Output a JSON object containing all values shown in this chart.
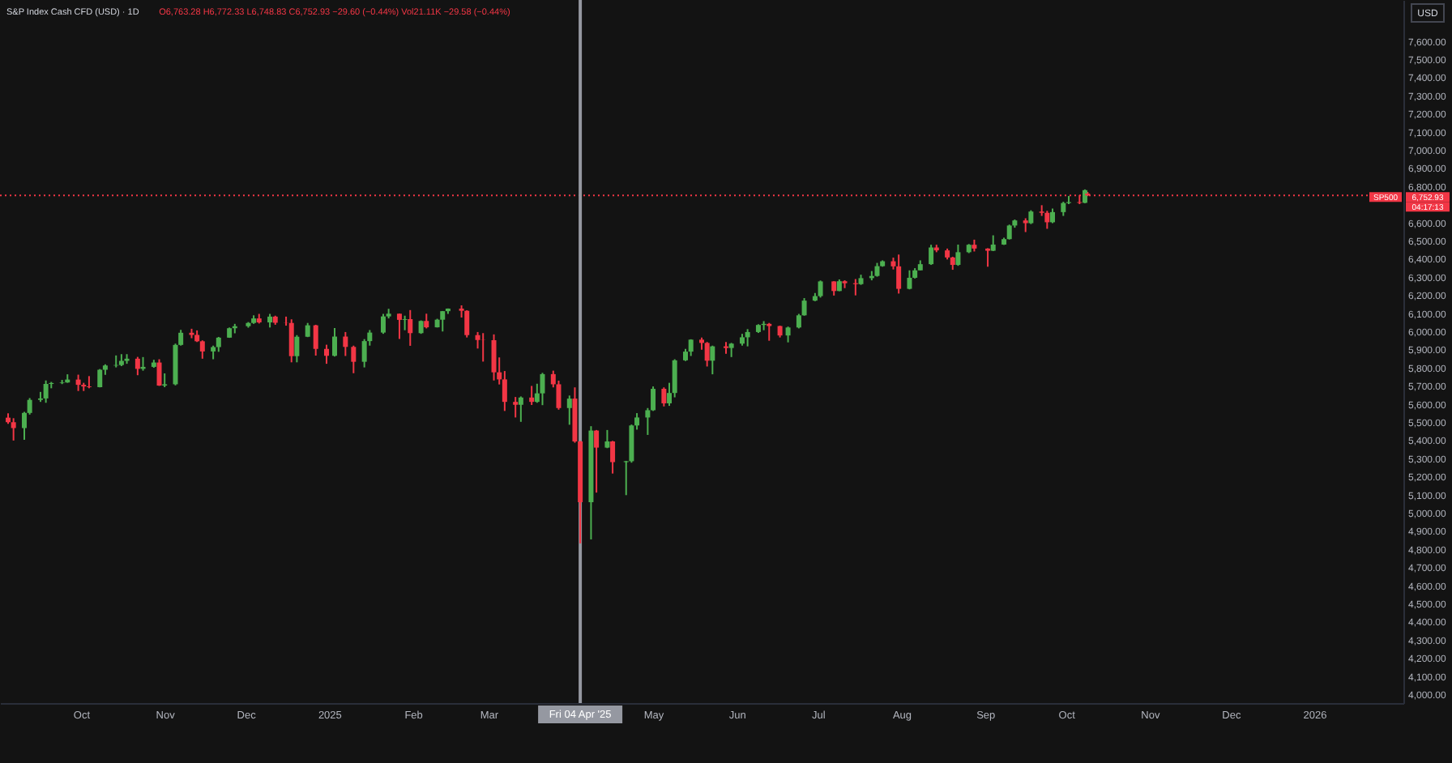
{
  "chart_data": {
    "type": "candlestick",
    "title": "S&P Index Cash CFD (USD) · 1D",
    "subtitle": "O6,763.28 H6,772.33 L6,748.83 C6,752.93 −29.60 (−0.44%) Vol21.11K −29.58 (−0.44%)",
    "ylabel": "USD",
    "xlim": [
      "2024-09-01",
      "2026-02-03"
    ],
    "ylim": [
      3955,
      7830
    ],
    "xticks": [
      {
        "value": "2024-10-01",
        "label": "Oct"
      },
      {
        "value": "2024-11-01",
        "label": "Nov"
      },
      {
        "value": "2024-12-01",
        "label": "Dec"
      },
      {
        "value": "2025-01-01",
        "label": "2025"
      },
      {
        "value": "2025-02-01",
        "label": "Feb"
      },
      {
        "value": "2025-03-01",
        "label": "Mar"
      },
      {
        "value": "2025-05-01",
        "label": "May"
      },
      {
        "value": "2025-06-01",
        "label": "Jun"
      },
      {
        "value": "2025-07-01",
        "label": "Jul"
      },
      {
        "value": "2025-08-01",
        "label": "Aug"
      },
      {
        "value": "2025-09-01",
        "label": "Sep"
      },
      {
        "value": "2025-10-01",
        "label": "Oct"
      },
      {
        "value": "2025-11-01",
        "label": "Nov"
      },
      {
        "value": "2025-12-01",
        "label": "Dec"
      },
      {
        "value": "2026-01-01",
        "label": "2026"
      }
    ],
    "yticks": [
      {
        "value": 4000,
        "label": "4,000.00"
      },
      {
        "value": 4100,
        "label": "4,100.00"
      },
      {
        "value": 4200,
        "label": "4,200.00"
      },
      {
        "value": 4300,
        "label": "4,300.00"
      },
      {
        "value": 4400,
        "label": "4,400.00"
      },
      {
        "value": 4500,
        "label": "4,500.00"
      },
      {
        "value": 4600,
        "label": "4,600.00"
      },
      {
        "value": 4700,
        "label": "4,700.00"
      },
      {
        "value": 4800,
        "label": "4,800.00"
      },
      {
        "value": 4900,
        "label": "4,900.00"
      },
      {
        "value": 5000,
        "label": "5,000.00"
      },
      {
        "value": 5100,
        "label": "5,100.00"
      },
      {
        "value": 5200,
        "label": "5,200.00"
      },
      {
        "value": 5300,
        "label": "5,300.00"
      },
      {
        "value": 5400,
        "label": "5,400.00"
      },
      {
        "value": 5500,
        "label": "5,500.00"
      },
      {
        "value": 5600,
        "label": "5,600.00"
      },
      {
        "value": 5700,
        "label": "5,700.00"
      },
      {
        "value": 5800,
        "label": "5,800.00"
      },
      {
        "value": 5900,
        "label": "5,900.00"
      },
      {
        "value": 6000,
        "label": "6,000.00"
      },
      {
        "value": 6100,
        "label": "6,100.00"
      },
      {
        "value": 6200,
        "label": "6,200.00"
      },
      {
        "value": 6300,
        "label": "6,300.00"
      },
      {
        "value": 6400,
        "label": "6,400.00"
      },
      {
        "value": 6500,
        "label": "6,500.00"
      },
      {
        "value": 6600,
        "label": "6,600.00"
      },
      {
        "value": 6800,
        "label": "6,800.00"
      },
      {
        "value": 6900,
        "label": "6,900.00"
      },
      {
        "value": 7000,
        "label": "7,000.00"
      },
      {
        "value": 7100,
        "label": "7,100.00"
      },
      {
        "value": 7200,
        "label": "7,200.00"
      },
      {
        "value": 7300,
        "label": "7,300.00"
      },
      {
        "value": 7400,
        "label": "7,400.00"
      },
      {
        "value": 7500,
        "label": "7,500.00"
      },
      {
        "value": 7600,
        "label": "7,600.00"
      }
    ],
    "ref_lines": [
      {
        "axis": "y",
        "value": 6752.93,
        "label": "6,752.93",
        "color": "#f23645",
        "line_style": "dotted"
      },
      {
        "axis": "x",
        "value": "2025-04-04",
        "label": "Fri 04 Apr '25",
        "color": "#9598a1"
      }
    ],
    "annotations": [
      {
        "text": "SP500",
        "y": 6752.93
      },
      "04:17:13"
    ],
    "x": [
      "2024-09-04",
      "2024-09-06",
      "2024-09-10",
      "2024-09-12",
      "2024-09-16",
      "2024-09-18",
      "2024-09-20",
      "2024-09-24",
      "2024-09-26",
      "2024-09-30",
      "2024-10-02",
      "2024-10-04",
      "2024-10-08",
      "2024-10-10",
      "2024-10-14",
      "2024-10-16",
      "2024-10-18",
      "2024-10-22",
      "2024-10-24",
      "2024-10-28",
      "2024-10-30",
      "2024-11-01",
      "2024-11-05",
      "2024-11-07",
      "2024-11-11",
      "2024-11-13",
      "2024-11-15",
      "2024-11-19",
      "2024-11-21",
      "2024-11-25",
      "2024-11-27",
      "2024-12-02",
      "2024-12-04",
      "2024-12-06",
      "2024-12-10",
      "2024-12-12",
      "2024-12-16",
      "2024-12-18",
      "2024-12-20",
      "2024-12-24",
      "2024-12-27",
      "2024-12-31",
      "2025-01-03",
      "2025-01-07",
      "2025-01-10",
      "2025-01-14",
      "2025-01-16",
      "2025-01-21",
      "2025-01-23",
      "2025-01-27",
      "2025-01-29",
      "2025-01-31",
      "2025-02-04",
      "2025-02-06",
      "2025-02-10",
      "2025-02-12",
      "2025-02-14",
      "2025-02-19",
      "2025-02-21",
      "2025-02-25",
      "2025-02-27",
      "2025-03-03",
      "2025-03-05",
      "2025-03-07",
      "2025-03-11",
      "2025-03-13",
      "2025-03-17",
      "2025-03-19",
      "2025-03-21",
      "2025-03-25",
      "2025-03-27",
      "2025-03-31",
      "2025-04-02",
      "2025-04-04",
      "2025-04-08",
      "2025-04-10",
      "2025-04-14",
      "2025-04-16",
      "2025-04-21",
      "2025-04-23",
      "2025-04-25",
      "2025-04-29",
      "2025-05-01",
      "2025-05-05",
      "2025-05-07",
      "2025-05-09",
      "2025-05-13",
      "2025-05-15",
      "2025-05-19",
      "2025-05-21",
      "2025-05-23",
      "2025-05-28",
      "2025-05-30",
      "2025-06-03",
      "2025-06-05",
      "2025-06-09",
      "2025-06-11",
      "2025-06-13",
      "2025-06-17",
      "2025-06-20",
      "2025-06-24",
      "2025-06-26",
      "2025-06-30",
      "2025-07-02",
      "2025-07-07",
      "2025-07-09",
      "2025-07-11",
      "2025-07-15",
      "2025-07-17",
      "2025-07-21",
      "2025-07-23",
      "2025-07-25",
      "2025-07-29",
      "2025-07-31",
      "2025-08-04",
      "2025-08-06",
      "2025-08-08",
      "2025-08-12",
      "2025-08-14",
      "2025-08-18",
      "2025-08-20",
      "2025-08-22",
      "2025-08-26",
      "2025-08-28",
      "2025-09-02",
      "2025-09-04",
      "2025-09-08",
      "2025-09-10",
      "2025-09-12",
      "2025-09-16",
      "2025-09-18",
      "2025-09-22",
      "2025-09-24",
      "2025-09-26",
      "2025-09-30",
      "2025-10-02",
      "2025-10-06",
      "2025-10-08",
      "2025-10-09"
    ],
    "ohlc": [
      [
        5528,
        5552,
        5494,
        5503
      ],
      [
        5503,
        5525,
        5402,
        5471
      ],
      [
        5471,
        5560,
        5406,
        5554
      ],
      [
        5554,
        5636,
        5545,
        5626
      ],
      [
        5626,
        5670,
        5615,
        5634
      ],
      [
        5634,
        5733,
        5610,
        5714
      ],
      [
        5714,
        5725,
        5690,
        5719
      ],
      [
        5719,
        5736,
        5713,
        5722
      ],
      [
        5722,
        5767,
        5720,
        5738
      ],
      [
        5738,
        5765,
        5675,
        5709
      ],
      [
        5709,
        5720,
        5675,
        5700
      ],
      [
        5700,
        5757,
        5690,
        5696
      ],
      [
        5696,
        5796,
        5695,
        5792
      ],
      [
        5792,
        5822,
        5764,
        5815
      ],
      [
        5815,
        5871,
        5805,
        5818
      ],
      [
        5818,
        5878,
        5812,
        5841
      ],
      [
        5841,
        5878,
        5825,
        5853
      ],
      [
        5853,
        5863,
        5762,
        5797
      ],
      [
        5797,
        5862,
        5787,
        5808
      ],
      [
        5808,
        5847,
        5803,
        5832
      ],
      [
        5832,
        5850,
        5703,
        5705
      ],
      [
        5705,
        5772,
        5696,
        5712
      ],
      [
        5712,
        5936,
        5706,
        5929
      ],
      [
        5929,
        6012,
        5925,
        5996
      ],
      [
        5996,
        6018,
        5966,
        5984
      ],
      [
        5984,
        6009,
        5945,
        5949
      ],
      [
        5949,
        5954,
        5853,
        5893
      ],
      [
        5893,
        5925,
        5850,
        5917
      ],
      [
        5917,
        5973,
        5891,
        5969
      ],
      [
        5969,
        6025,
        5968,
        6021
      ],
      [
        6021,
        6045,
        5993,
        6032
      ],
      [
        6032,
        6055,
        6024,
        6050
      ],
      [
        6050,
        6092,
        6045,
        6075
      ],
      [
        6075,
        6100,
        6047,
        6053
      ],
      [
        6053,
        6100,
        6025,
        6085
      ],
      [
        6085,
        6090,
        6040,
        6051
      ],
      [
        6051,
        6085,
        6035,
        6050
      ],
      [
        6050,
        6070,
        5833,
        5867
      ],
      [
        5867,
        5983,
        5833,
        5974
      ],
      [
        5974,
        6050,
        5972,
        6037
      ],
      [
        6037,
        6040,
        5870,
        5907
      ],
      [
        5907,
        5930,
        5825,
        5869
      ],
      [
        5869,
        6022,
        5865,
        5975
      ],
      [
        5975,
        6000,
        5868,
        5918
      ],
      [
        5918,
        5925,
        5773,
        5836
      ],
      [
        5836,
        5961,
        5805,
        5950
      ],
      [
        5950,
        6011,
        5925,
        5997
      ],
      [
        5997,
        6100,
        5990,
        6086
      ],
      [
        6086,
        6128,
        6075,
        6101
      ],
      [
        6101,
        6102,
        5962,
        6067
      ],
      [
        6067,
        6090,
        6010,
        6071
      ],
      [
        6071,
        6121,
        5924,
        5994
      ],
      [
        5994,
        6064,
        5990,
        6061
      ],
      [
        6061,
        6101,
        6020,
        6026
      ],
      [
        6026,
        6073,
        6025,
        6068
      ],
      [
        6068,
        6116,
        6003,
        6115
      ],
      [
        6115,
        6130,
        6100,
        6129
      ],
      [
        6129,
        6147,
        6080,
        6117
      ],
      [
        6117,
        6120,
        5970,
        5983
      ],
      [
        5983,
        6000,
        5909,
        5956
      ],
      [
        5956,
        5994,
        5837,
        5955
      ],
      [
        5955,
        5987,
        5733,
        5778
      ],
      [
        5778,
        5860,
        5711,
        5739
      ],
      [
        5739,
        5785,
        5565,
        5615
      ],
      [
        5615,
        5642,
        5529,
        5599
      ],
      [
        5599,
        5645,
        5505,
        5639
      ],
      [
        5639,
        5703,
        5598,
        5615
      ],
      [
        5615,
        5715,
        5610,
        5662
      ],
      [
        5662,
        5775,
        5597,
        5768
      ],
      [
        5768,
        5787,
        5695,
        5712
      ],
      [
        5712,
        5732,
        5572,
        5581
      ],
      [
        5581,
        5650,
        5489,
        5633
      ],
      [
        5633,
        5695,
        5390,
        5397
      ],
      [
        5397,
        5400,
        4835,
        5062
      ],
      [
        5062,
        5481,
        4857,
        5457
      ],
      [
        5457,
        5460,
        5115,
        5363
      ],
      [
        5363,
        5460,
        5360,
        5397
      ],
      [
        5397,
        5400,
        5220,
        5283
      ],
      [
        5283,
        5290,
        5101,
        5288
      ],
      [
        5288,
        5490,
        5280,
        5485
      ],
      [
        5485,
        5553,
        5462,
        5529
      ],
      [
        5529,
        5581,
        5433,
        5569
      ],
      [
        5569,
        5700,
        5565,
        5687
      ],
      [
        5687,
        5695,
        5590,
        5607
      ],
      [
        5607,
        5720,
        5593,
        5664
      ],
      [
        5664,
        5850,
        5640,
        5844
      ],
      [
        5844,
        5907,
        5840,
        5892
      ],
      [
        5892,
        5960,
        5868,
        5958
      ],
      [
        5958,
        5970,
        5902,
        5940
      ],
      [
        5940,
        5945,
        5810,
        5842
      ],
      [
        5842,
        5925,
        5767,
        5921
      ],
      [
        5921,
        5945,
        5880,
        5912
      ],
      [
        5912,
        5940,
        5862,
        5936
      ],
      [
        5936,
        5990,
        5925,
        5971
      ],
      [
        5971,
        6016,
        5921,
        6000
      ],
      [
        6000,
        6043,
        5995,
        6039
      ],
      [
        6039,
        6060,
        6010,
        6045
      ],
      [
        6045,
        6050,
        5952,
        6033
      ],
      [
        6033,
        6035,
        5970,
        5981
      ],
      [
        5981,
        6030,
        5943,
        6025
      ],
      [
        6025,
        6100,
        6020,
        6092
      ],
      [
        6092,
        6187,
        6090,
        6173
      ],
      [
        6173,
        6215,
        6170,
        6198
      ],
      [
        6198,
        6284,
        6190,
        6279
      ],
      [
        6279,
        6280,
        6201,
        6226
      ],
      [
        6226,
        6290,
        6225,
        6280
      ],
      [
        6280,
        6285,
        6242,
        6269
      ],
      [
        6269,
        6292,
        6202,
        6264
      ],
      [
        6264,
        6316,
        6260,
        6297
      ],
      [
        6297,
        6336,
        6285,
        6309
      ],
      [
        6309,
        6381,
        6305,
        6363
      ],
      [
        6363,
        6395,
        6360,
        6390
      ],
      [
        6390,
        6410,
        6345,
        6362
      ],
      [
        6362,
        6427,
        6212,
        6238
      ],
      [
        6238,
        6340,
        6235,
        6299
      ],
      [
        6299,
        6352,
        6295,
        6340
      ],
      [
        6340,
        6395,
        6340,
        6374
      ],
      [
        6374,
        6481,
        6370,
        6466
      ],
      [
        6466,
        6481,
        6440,
        6450
      ],
      [
        6450,
        6460,
        6400,
        6411
      ],
      [
        6411,
        6415,
        6343,
        6370
      ],
      [
        6370,
        6482,
        6365,
        6440
      ],
      [
        6440,
        6485,
        6435,
        6481
      ],
      [
        6481,
        6509,
        6444,
        6460
      ],
      [
        6460,
        6462,
        6360,
        6448
      ],
      [
        6448,
        6533,
        6446,
        6482
      ],
      [
        6482,
        6520,
        6480,
        6512
      ],
      [
        6512,
        6592,
        6510,
        6587
      ],
      [
        6587,
        6620,
        6575,
        6615
      ],
      [
        6615,
        6627,
        6551,
        6600
      ],
      [
        6600,
        6671,
        6595,
        6664
      ],
      [
        6664,
        6699,
        6640,
        6657
      ],
      [
        6657,
        6668,
        6569,
        6605
      ],
      [
        6605,
        6680,
        6600,
        6661
      ],
      [
        6661,
        6718,
        6640,
        6711
      ],
      [
        6711,
        6750,
        6705,
        6716
      ],
      [
        6716,
        6755,
        6705,
        6712
      ],
      [
        6712,
        6786,
        6710,
        6782
      ],
      [
        6763.28,
        6772.33,
        6748.83,
        6752.93
      ]
    ],
    "colors": [
      "#f23645",
      "#f23645",
      "#4caf50",
      "#4caf50",
      "#4caf50",
      "#4caf50",
      "#4caf50",
      "#4caf50",
      "#4caf50",
      "#f23645",
      "#f23645",
      "#f23645",
      "#4caf50",
      "#4caf50",
      "#4caf50",
      "#4caf50",
      "#4caf50",
      "#f23645",
      "#4caf50",
      "#4caf50",
      "#f23645",
      "#4caf50",
      "#4caf50",
      "#4caf50",
      "#f23645",
      "#f23645",
      "#f23645",
      "#4caf50",
      "#4caf50",
      "#4caf50",
      "#4caf50",
      "#4caf50",
      "#4caf50",
      "#f23645",
      "#4caf50",
      "#f23645",
      "#f23645",
      "#f23645",
      "#4caf50",
      "#4caf50",
      "#f23645",
      "#f23645",
      "#4caf50",
      "#f23645",
      "#f23645",
      "#4caf50",
      "#4caf50",
      "#4caf50",
      "#4caf50",
      "#f23645",
      "#4caf50",
      "#f23645",
      "#4caf50",
      "#f23645",
      "#4caf50",
      "#4caf50",
      "#4caf50",
      "#f23645",
      "#f23645",
      "#f23645",
      "#f23645",
      "#f23645",
      "#f23645",
      "#f23645",
      "#f23645",
      "#4caf50",
      "#f23645",
      "#4caf50",
      "#4caf50",
      "#f23645",
      "#f23645",
      "#4caf50",
      "#f23645",
      "#f23645",
      "#4caf50",
      "#f23645",
      "#4caf50",
      "#f23645",
      "#4caf50",
      "#4caf50",
      "#4caf50",
      "#4caf50",
      "#4caf50",
      "#f23645",
      "#4caf50",
      "#4caf50",
      "#4caf50",
      "#4caf50",
      "#f23645",
      "#f23645",
      "#4caf50",
      "#f23645",
      "#4caf50",
      "#4caf50",
      "#4caf50",
      "#4caf50",
      "#4caf50",
      "#f23645",
      "#f23645",
      "#4caf50",
      "#4caf50",
      "#4caf50",
      "#4caf50",
      "#4caf50",
      "#f23645",
      "#4caf50",
      "#f23645",
      "#f23645",
      "#4caf50",
      "#4caf50",
      "#4caf50",
      "#4caf50",
      "#f23645",
      "#f23645",
      "#4caf50",
      "#4caf50",
      "#4caf50",
      "#4caf50",
      "#f23645",
      "#f23645",
      "#f23645",
      "#4caf50",
      "#4caf50",
      "#f23645",
      "#f23645",
      "#4caf50",
      "#4caf50",
      "#4caf50",
      "#4caf50",
      "#f23645",
      "#4caf50",
      "#f23645",
      "#f23645",
      "#4caf50",
      "#4caf50",
      "#4caf50",
      "#f23645",
      "#4caf50",
      "#f23645"
    ]
  }
}
